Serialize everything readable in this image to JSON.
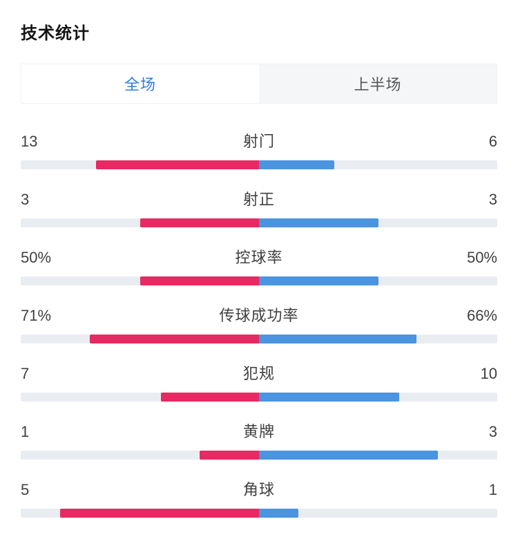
{
  "page": {
    "title": "技术统计"
  },
  "tabs": [
    {
      "label": "全场",
      "active": true
    },
    {
      "label": "上半场",
      "active": false
    }
  ],
  "colors": {
    "home": "#e72a63",
    "away": "#4a94e0",
    "track": "#e9edf2",
    "tab_bg": "#f5f6f8",
    "tab_active": "#2b7fe3",
    "text": "#404040",
    "title": "#141414"
  },
  "chart_data": {
    "type": "bar",
    "title": "技术统计",
    "layout": "paired horizontal bars extending left/right from center; left series pink, right series blue; counts scaled by share of row total, percentages scaled by value/100 of half track",
    "rows": [
      {
        "label": "射门",
        "left": "13",
        "right": "6"
      },
      {
        "label": "射正",
        "left": "3",
        "right": "3"
      },
      {
        "label": "控球率",
        "left": "50%",
        "right": "50%"
      },
      {
        "label": "传球成功率",
        "left": "71%",
        "right": "66%"
      },
      {
        "label": "犯规",
        "left": "7",
        "right": "10"
      },
      {
        "label": "黄牌",
        "left": "1",
        "right": "3"
      },
      {
        "label": "角球",
        "left": "5",
        "right": "1"
      }
    ]
  }
}
